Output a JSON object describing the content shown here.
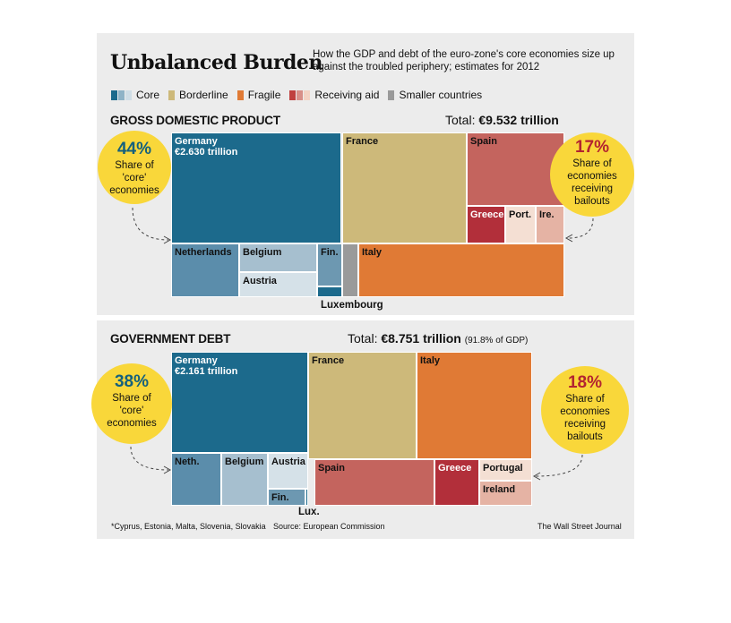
{
  "header": {
    "title": "Unbalanced Burden",
    "subtitle": "How the GDP and debt of the euro-zone's core economies size up against the troubled periphery; estimates for 2012"
  },
  "legend": [
    {
      "label": "Core",
      "colors": [
        "#1c6a8c",
        "#8fb3c7",
        "#cfdde6"
      ]
    },
    {
      "label": "Borderline",
      "colors": [
        "#cdb97a"
      ]
    },
    {
      "label": "Fragile",
      "colors": [
        "#e07a35"
      ]
    },
    {
      "label": "Receiving aid",
      "colors": [
        "#c0403f",
        "#d88f88",
        "#f3d3c4"
      ]
    },
    {
      "label": "Smaller countries",
      "colors": [
        "#9a9a9a"
      ]
    }
  ],
  "gdp": {
    "title": "GROSS DOMESTIC PRODUCT",
    "total_prefix": "Total: ",
    "total_value": "€9.532 trillion",
    "left_callout": {
      "pct": "44%",
      "text": [
        "Share of",
        "'core'",
        "economies"
      ]
    },
    "right_callout": {
      "pct": "17%",
      "text": [
        "Share of",
        "economies",
        "receiving",
        "bailouts"
      ]
    },
    "outside_label": "Luxembourg"
  },
  "debt": {
    "title": "GOVERNMENT DEBT",
    "total_prefix": "Total: ",
    "total_value": "€8.751 trillion",
    "total_note": "(91.8% of GDP)",
    "left_callout": {
      "pct": "38%",
      "text": [
        "Share of",
        "'core'",
        "economies"
      ]
    },
    "right_callout": {
      "pct": "18%",
      "text": [
        "Share of",
        "economies",
        "receiving",
        "bailouts"
      ]
    },
    "outside_label": "Lux."
  },
  "footer": {
    "note": "*Cyprus, Estonia, Malta, Slovenia, Slovakia",
    "source": "Source: European Commission",
    "credit": "The Wall Street Journal"
  },
  "chart_data": [
    {
      "type": "treemap",
      "title": "GROSS DOMESTIC PRODUCT",
      "total": "€9.532 trillion",
      "items": [
        {
          "name": "Germany",
          "label": "Germany",
          "value_label": "€2.630 trillion",
          "group": "Core",
          "value": 2.63,
          "color": "#1c6a8c",
          "text": "light"
        },
        {
          "name": "Netherlands",
          "label": "Netherlands",
          "group": "Core",
          "value": 0.6,
          "color": "#5b8dab"
        },
        {
          "name": "Belgium",
          "label": "Belgium",
          "group": "Core",
          "value": 0.37,
          "color": "#a6bfcf"
        },
        {
          "name": "Austria",
          "label": "Austria",
          "group": "Core",
          "value": 0.31,
          "color": "#d5e1e8"
        },
        {
          "name": "Finland",
          "label": "Fin.",
          "group": "Core",
          "value": 0.19,
          "color": "#6d98b1"
        },
        {
          "name": "Luxembourg",
          "label": "",
          "group": "Core",
          "value": 0.04,
          "color": "#1c6a8c"
        },
        {
          "name": "France",
          "label": "France",
          "group": "Borderline",
          "value": 2.03,
          "color": "#cdb97a"
        },
        {
          "name": "Smaller countries",
          "label": "",
          "group": "Smaller countries",
          "value": 0.07,
          "color": "#9a9a9a"
        },
        {
          "name": "Italy",
          "label": "Italy",
          "group": "Fragile",
          "value": 1.57,
          "color": "#e07a35"
        },
        {
          "name": "Spain",
          "label": "Spain",
          "group": "Receiving aid",
          "value": 1.07,
          "color": "#c4645e"
        },
        {
          "name": "Greece",
          "label": "Greece",
          "group": "Receiving aid",
          "value": 0.21,
          "color": "#b22f3a",
          "text": "light"
        },
        {
          "name": "Portugal",
          "label": "Port.",
          "group": "Receiving aid",
          "value": 0.17,
          "color": "#f4dfd3"
        },
        {
          "name": "Ireland",
          "label": "Ire.",
          "group": "Receiving aid",
          "value": 0.16,
          "color": "#e5b3a4"
        }
      ]
    },
    {
      "type": "treemap",
      "title": "GOVERNMENT DEBT",
      "total": "€8.751 trillion",
      "note": "(91.8% of GDP)",
      "items": [
        {
          "name": "Germany",
          "label": "Germany",
          "value_label": "€2.161 trillion",
          "group": "Core",
          "value": 2.161,
          "color": "#1c6a8c",
          "text": "light"
        },
        {
          "name": "Netherlands",
          "label": "Neth.",
          "group": "Core",
          "value": 0.44,
          "color": "#5b8dab"
        },
        {
          "name": "Belgium",
          "label": "Belgium",
          "group": "Core",
          "value": 0.38,
          "color": "#a6bfcf"
        },
        {
          "name": "Austria",
          "label": "Austria",
          "group": "Core",
          "value": 0.23,
          "color": "#d5e1e8"
        },
        {
          "name": "Finland",
          "label": "Fin.",
          "group": "Core",
          "value": 0.1,
          "color": "#6d98b1"
        },
        {
          "name": "Luxembourg",
          "label": "",
          "group": "Core",
          "value": 0.01,
          "color": "#1c6a8c"
        },
        {
          "name": "France",
          "label": "France",
          "group": "Borderline",
          "value": 1.79,
          "color": "#cdb97a"
        },
        {
          "name": "Italy",
          "label": "Italy",
          "group": "Fragile",
          "value": 1.98,
          "color": "#e07a35"
        },
        {
          "name": "Spain",
          "label": "Spain",
          "group": "Receiving aid",
          "value": 0.85,
          "color": "#c4645e"
        },
        {
          "name": "Greece",
          "label": "Greece",
          "group": "Receiving aid",
          "value": 0.35,
          "color": "#b22f3a",
          "text": "light"
        },
        {
          "name": "Portugal",
          "label": "Portugal",
          "group": "Receiving aid",
          "value": 0.2,
          "color": "#f4dfd3"
        },
        {
          "name": "Ireland",
          "label": "Ireland",
          "group": "Receiving aid",
          "value": 0.19,
          "color": "#e5b3a4"
        }
      ]
    }
  ]
}
